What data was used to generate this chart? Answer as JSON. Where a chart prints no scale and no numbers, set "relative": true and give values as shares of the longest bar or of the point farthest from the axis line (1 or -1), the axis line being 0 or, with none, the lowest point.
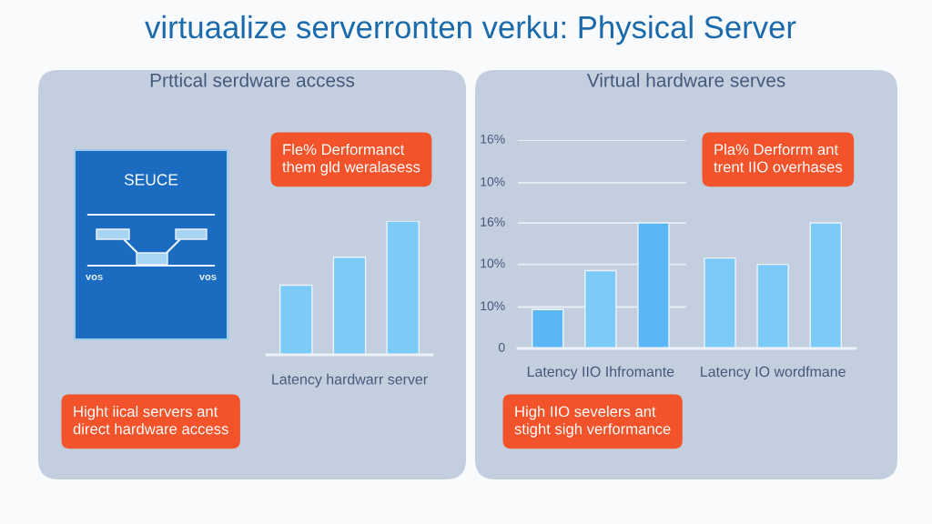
{
  "chart_data": [
    {
      "type": "other",
      "title": "virtuaalize serverronten verku: Physical Server"
    },
    {
      "type": "other",
      "title": "Prttical serdware access",
      "annotations": [
        "SEUCE",
        "vos",
        "vos",
        "Hight iical servers ant\ndirect hardware access"
      ]
    },
    {
      "type": "bar",
      "relative": true,
      "title": "Fle% Derformanct\nthem gld weralasess",
      "xlabel": "Latency hardwarr server",
      "categories": [
        null,
        null,
        null
      ],
      "values": [
        0.52,
        0.73,
        1.0
      ],
      "color": "#7ccaf8"
    },
    {
      "type": "other",
      "title": "Virtual hardware serves",
      "annotations": [
        "High IIO sevelers ant\nstight sigh verformance"
      ]
    },
    {
      "type": "bar",
      "relative": true,
      "title": "Pla% Derforrm ant\ntrent IIO overhases",
      "categories": [
        "Latency IIO Ihfromante",
        "Latency IO wordfmane"
      ],
      "series": [
        {
          "colors": [
            "#5ab6f4",
            "#7ccaf8"
          ],
          "values": [
            0.31,
            0.72
          ]
        },
        {
          "color": "#7ccaf8",
          "values": [
            0.62,
            0.67
          ]
        },
        {
          "colors": [
            "#5ab6f4",
            "#7ccaf8"
          ],
          "values": [
            1.0,
            1.0
          ]
        }
      ],
      "ref_lines": [
        {
          "axis": "y",
          "value": 0.33
        },
        {
          "axis": "y",
          "value": 0.67
        },
        {
          "axis": "y",
          "value": 1.0
        },
        {
          "axis": "y",
          "value": 1.32
        },
        {
          "axis": "y",
          "value": 1.66
        }
      ],
      "annotations": [
        "0",
        "10%",
        "10%",
        "16%",
        "10%",
        "16%"
      ],
      "tick_labels": "x"
    }
  ]
}
